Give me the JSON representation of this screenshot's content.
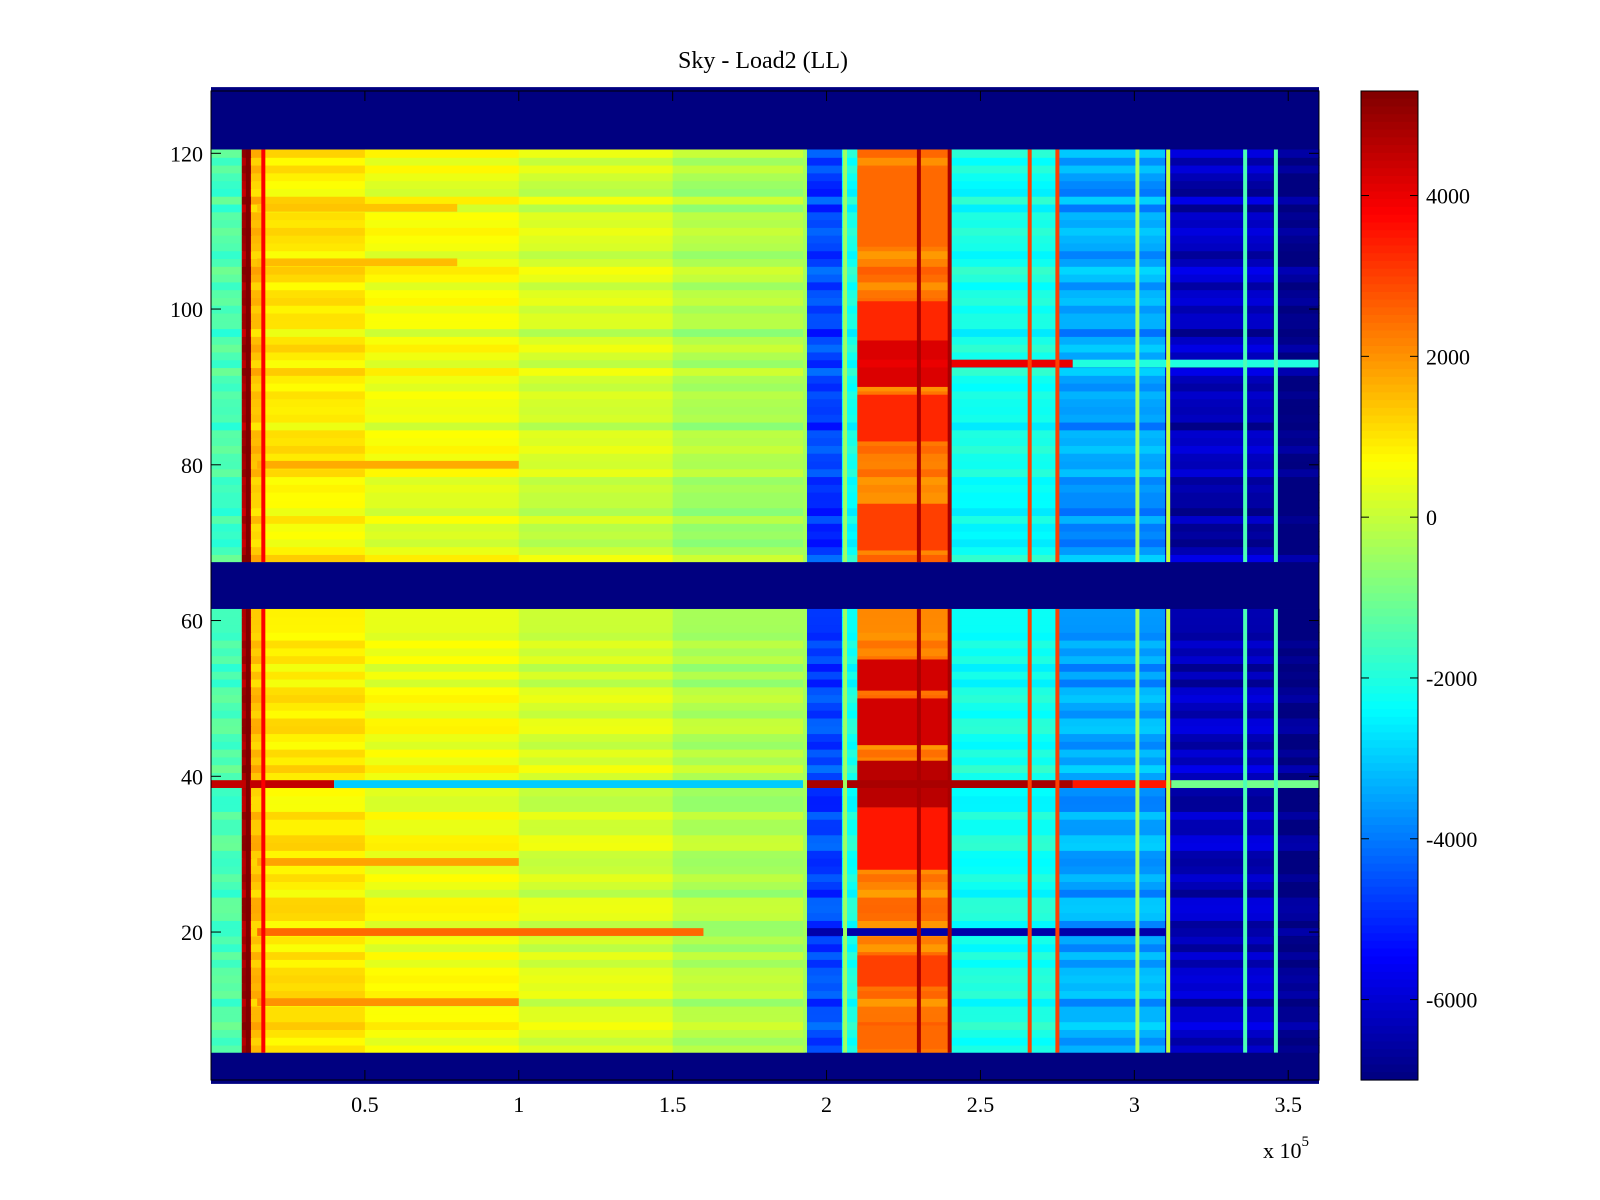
{
  "chart_data": {
    "type": "heatmap",
    "title": "Sky - Load2 (LL)",
    "xlabel": "",
    "ylabel": "",
    "x_multiplier": "x 10",
    "x_multiplier_exponent": "5",
    "xlim": [
      0,
      3.6
    ],
    "ylim": [
      1,
      128
    ],
    "x_ticks": [
      0.5,
      1,
      1.5,
      2,
      2.5,
      3,
      3.5
    ],
    "x_tick_labels": [
      "0.5",
      "1",
      "1.5",
      "2",
      "2.5",
      "3",
      "3.5"
    ],
    "y_ticks": [
      20,
      40,
      60,
      80,
      100,
      120
    ],
    "y_tick_labels": [
      "20",
      "40",
      "60",
      "80",
      "100",
      "120"
    ],
    "colormap": "jet",
    "clim": [
      -7000,
      5300
    ],
    "colorbar_ticks": [
      4000,
      2000,
      0,
      -2000,
      -4000,
      -6000
    ],
    "colorbar_tick_labels": [
      "4000",
      "2000",
      "0",
      "-2000",
      "-4000",
      "-6000"
    ],
    "masked_rows": [
      [
        1,
        4
      ],
      [
        62,
        67
      ],
      [
        121,
        128
      ]
    ],
    "bands": [
      {
        "x_range": [
          0,
          0.1
        ],
        "value": -1500
      },
      {
        "x_range": [
          0.1,
          0.13
        ],
        "value": 4800
      },
      {
        "x_range": [
          0.13,
          0.17
        ],
        "value": 1400
      },
      {
        "x_range": [
          0.17,
          0.5
        ],
        "value": 900
      },
      {
        "x_range": [
          0.5,
          1.0
        ],
        "value": 500
      },
      {
        "x_range": [
          1.0,
          1.5
        ],
        "value": 150
      },
      {
        "x_range": [
          1.5,
          1.93
        ],
        "value": -300
      },
      {
        "x_range": [
          1.93,
          2.05
        ],
        "value": -4700
      },
      {
        "x_range": [
          2.05,
          2.1
        ],
        "value": -2200
      },
      {
        "x_range": [
          2.1,
          2.4
        ],
        "value": 2200
      },
      {
        "x_range": [
          2.4,
          2.75
        ],
        "value": -2200
      },
      {
        "x_range": [
          2.75,
          3.1
        ],
        "value": -3500
      },
      {
        "x_range": [
          3.1,
          3.45
        ],
        "value": -6300
      },
      {
        "x_range": [
          3.45,
          3.6
        ],
        "value": -7000
      }
    ],
    "vertical_lines": [
      {
        "x": 0.12,
        "value": 5300
      },
      {
        "x": 0.17,
        "value": 3800
      },
      {
        "x": 1.93,
        "value": -400
      },
      {
        "x": 2.06,
        "value": -500
      },
      {
        "x": 2.3,
        "value": 4800
      },
      {
        "x": 2.4,
        "value": 4800
      },
      {
        "x": 2.66,
        "value": 3000
      },
      {
        "x": 2.75,
        "value": 3000
      },
      {
        "x": 3.01,
        "value": -300
      },
      {
        "x": 3.11,
        "value": 0
      },
      {
        "x": 3.36,
        "value": -1500
      },
      {
        "x": 3.46,
        "value": -1500
      }
    ],
    "horizontal_features": [
      {
        "y": 39,
        "x_range": [
          0,
          0.4
        ],
        "value": 4500
      },
      {
        "y": 39,
        "x_range": [
          0.4,
          1.93
        ],
        "value": -3000
      },
      {
        "y": 39,
        "x_range": [
          1.93,
          2.8
        ],
        "value": 4800
      },
      {
        "y": 39,
        "x_range": [
          2.8,
          3.12
        ],
        "value": 3500
      },
      {
        "y": 39,
        "x_range": [
          3.12,
          3.6
        ],
        "value": -1000
      },
      {
        "y": 93,
        "x_range": [
          2.1,
          2.8
        ],
        "value": 4000
      },
      {
        "y": 93,
        "x_range": [
          2.8,
          3.6
        ],
        "value": -2000
      },
      {
        "y": 20,
        "x_range": [
          0.15,
          1.6
        ],
        "value": 2500
      },
      {
        "y": 20,
        "x_range": [
          1.93,
          3.6
        ],
        "value": -6500
      },
      {
        "y": 11,
        "x_range": [
          0.15,
          1.0
        ],
        "value": 2000
      },
      {
        "y": 29,
        "x_range": [
          0.15,
          1.0
        ],
        "value": 1800
      },
      {
        "y": 80,
        "x_range": [
          0.15,
          1.0
        ],
        "value": 1700
      },
      {
        "y": 106,
        "x_range": [
          0.15,
          0.8
        ],
        "value": 1500
      },
      {
        "y": 113,
        "x_range": [
          0.15,
          0.8
        ],
        "value": 1400
      }
    ],
    "bright_blocks": [
      {
        "x_range": [
          2.1,
          2.4
        ],
        "y_range": [
          5,
          8
        ],
        "value": 2500
      },
      {
        "x_range": [
          2.1,
          2.4
        ],
        "y_range": [
          13,
          17
        ],
        "value": 3000
      },
      {
        "x_range": [
          2.1,
          2.4
        ],
        "y_range": [
          28,
          36
        ],
        "value": 3500
      },
      {
        "x_range": [
          2.1,
          2.4
        ],
        "y_range": [
          36,
          42
        ],
        "value": 4600
      },
      {
        "x_range": [
          2.1,
          2.4
        ],
        "y_range": [
          44,
          50
        ],
        "value": 4300
      },
      {
        "x_range": [
          2.1,
          2.4
        ],
        "y_range": [
          51,
          55
        ],
        "value": 4300
      },
      {
        "x_range": [
          2.1,
          2.4
        ],
        "y_range": [
          69,
          75
        ],
        "value": 3000
      },
      {
        "x_range": [
          2.1,
          2.4
        ],
        "y_range": [
          83,
          89
        ],
        "value": 3300
      },
      {
        "x_range": [
          2.1,
          2.4
        ],
        "y_range": [
          90,
          96
        ],
        "value": 4200
      },
      {
        "x_range": [
          2.1,
          2.4
        ],
        "y_range": [
          96,
          101
        ],
        "value": 3300
      },
      {
        "x_range": [
          2.1,
          2.4
        ],
        "y_range": [
          108,
          118
        ],
        "value": 2500
      }
    ]
  }
}
